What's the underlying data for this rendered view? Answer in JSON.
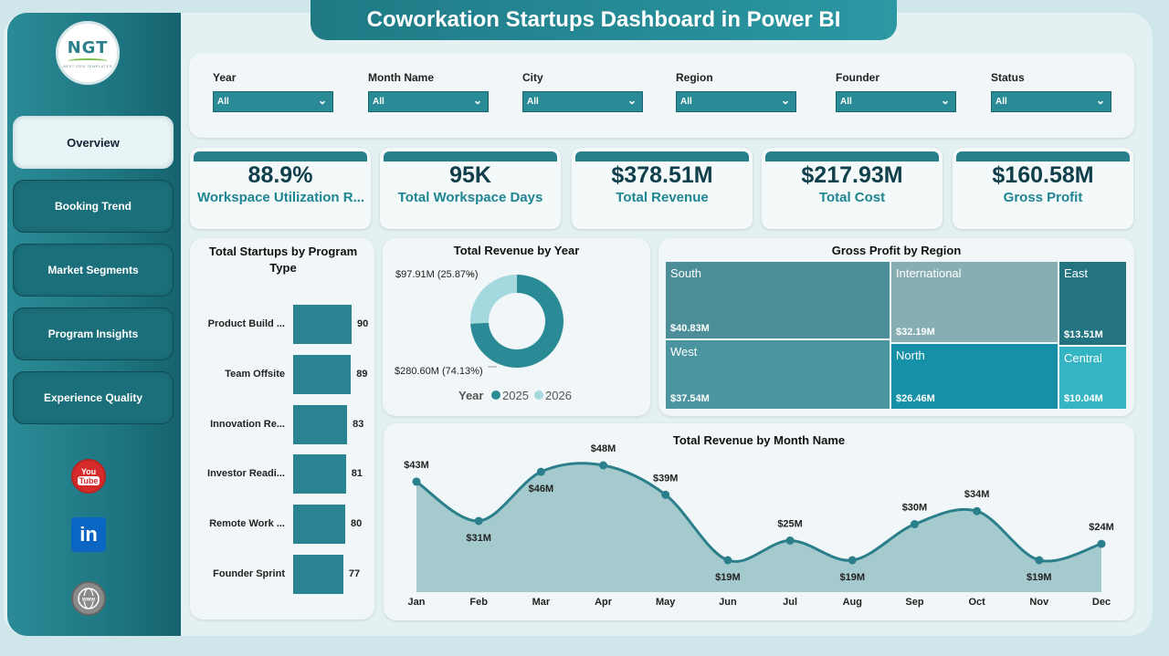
{
  "title": "Coworkation Startups Dashboard in Power BI",
  "logo": {
    "text": "NGT",
    "subtitle": "NEXT GEN TEMPLATES"
  },
  "nav": [
    "Overview",
    "Booking Trend",
    "Market Segments",
    "Program Insights",
    "Experience Quality"
  ],
  "social": {
    "youtube_line1": "You",
    "youtube_line2": "Tube",
    "linkedin": "in",
    "web": "www"
  },
  "filters": [
    {
      "label": "Year",
      "value": "All"
    },
    {
      "label": "Month Name",
      "value": "All"
    },
    {
      "label": "City",
      "value": "All"
    },
    {
      "label": "Region",
      "value": "All"
    },
    {
      "label": "Founder",
      "value": "All"
    },
    {
      "label": "Status",
      "value": "All"
    }
  ],
  "kpis": [
    {
      "value": "88.9%",
      "label": "Workspace Utilization R..."
    },
    {
      "value": "95K",
      "label": "Total Workspace Days"
    },
    {
      "value": "$378.51M",
      "label": "Total Revenue"
    },
    {
      "value": "$217.93M",
      "label": "Total Cost"
    },
    {
      "value": "$160.58M",
      "label": "Gross Profit"
    }
  ],
  "colors": {
    "primary": "#2a8b96",
    "dark": "#1f7a85",
    "light": "#a5d9e0",
    "area": "#9cc4c9"
  },
  "chart_data": [
    {
      "type": "bar",
      "title": "Total Startups by Program Type",
      "categories": [
        "Product Build ...",
        "Team Offsite",
        "Innovation Re...",
        "Investor Readi...",
        "Remote Work ...",
        "Founder Sprint"
      ],
      "values": [
        90,
        89,
        83,
        81,
        80,
        77
      ]
    },
    {
      "type": "pie",
      "title": "Total Revenue by Year",
      "legend_title": "Year",
      "labels": [
        "2025",
        "2026"
      ],
      "values": [
        280.6,
        97.91
      ],
      "data_labels": [
        "$280.60M (74.13%)",
        "$97.91M (25.87%)"
      ],
      "colors": [
        "#2a8b96",
        "#a5d9e0"
      ]
    },
    {
      "type": "heatmap",
      "subtype": "treemap",
      "title": "Gross Profit by Region",
      "labels": [
        "South",
        "International",
        "East",
        "West",
        "North",
        "Central"
      ],
      "values": [
        40.83,
        32.19,
        13.51,
        37.54,
        26.46,
        10.04
      ],
      "value_labels": [
        "$40.83M",
        "$32.19M",
        "$13.51M",
        "$37.54M",
        "$26.46M",
        "$10.04M"
      ]
    },
    {
      "type": "area",
      "title": "Total Revenue by Month Name",
      "categories": [
        "Jan",
        "Feb",
        "Mar",
        "Apr",
        "May",
        "Jun",
        "Jul",
        "Aug",
        "Sep",
        "Oct",
        "Nov",
        "Dec"
      ],
      "values": [
        43,
        31,
        46,
        48,
        39,
        19,
        25,
        19,
        30,
        34,
        19,
        24
      ],
      "value_labels": [
        "$43M",
        "$31M",
        "$46M",
        "$48M",
        "$39M",
        "$19M",
        "$25M",
        "$19M",
        "$30M",
        "$34M",
        "$19M",
        "$24M"
      ]
    }
  ]
}
